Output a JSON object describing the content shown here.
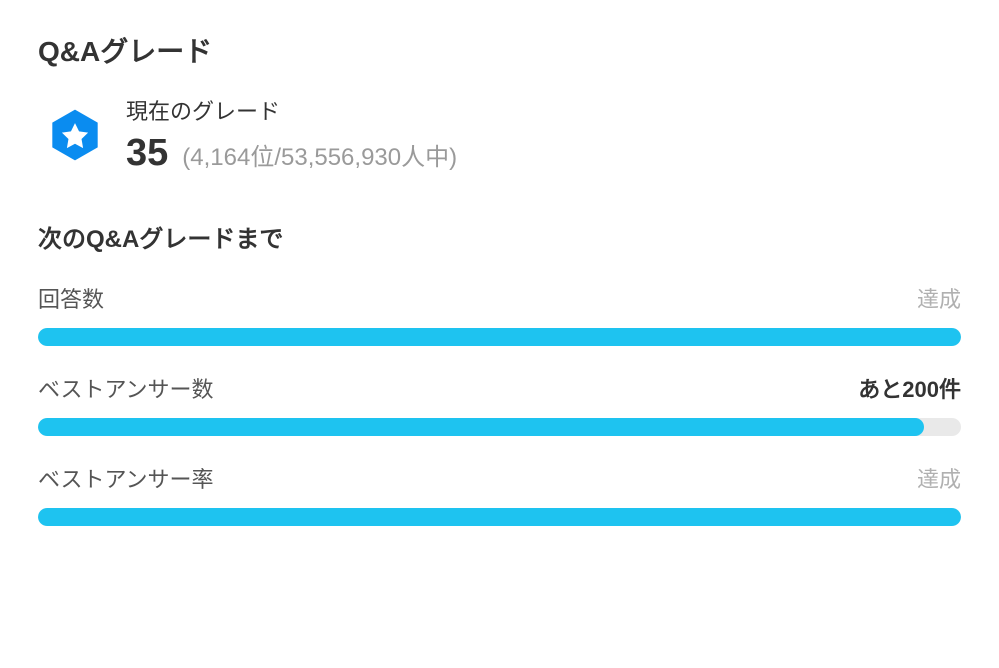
{
  "colors": {
    "badge_bg": "#0a8cf0",
    "badge_star": "#ffffff",
    "bar_fill": "#1ec3f0",
    "bar_track": "#e9e9e9",
    "text_primary": "#333333",
    "text_muted": "#9a9a9a",
    "text_achieved": "#b0b0b0"
  },
  "grade_section": {
    "title": "Q&Aグレード",
    "current_grade_label": "現在のグレード",
    "grade_value": "35",
    "rank_text": "(4,164位/53,556,930人中)"
  },
  "next_grade_section": {
    "title": "次のQ&Aグレードまで",
    "items": [
      {
        "label": "回答数",
        "status_text": "達成",
        "status_kind": "achieved",
        "percent": 100
      },
      {
        "label": "ベストアンサー数",
        "status_text": "あと200件",
        "status_kind": "remaining",
        "percent": 96
      },
      {
        "label": "ベストアンサー率",
        "status_text": "達成",
        "status_kind": "achieved",
        "percent": 100
      }
    ]
  }
}
